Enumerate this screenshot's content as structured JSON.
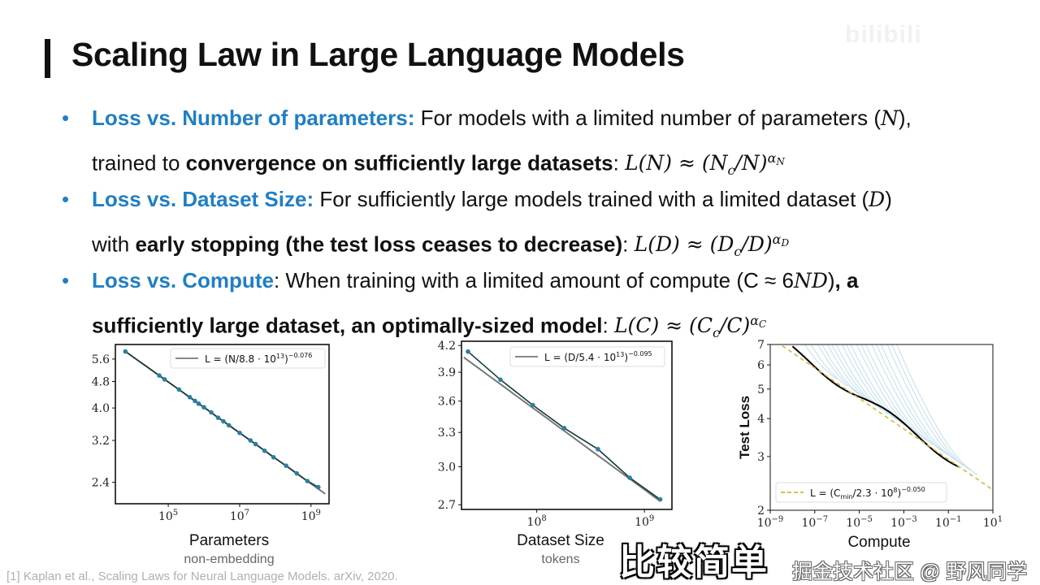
{
  "slide": {
    "title": "Scaling Law in Large Language Models",
    "watermark_logo": "bilibili",
    "bullets": [
      {
        "lead": "Loss vs. Number of parameters:",
        "text1": " For models with a limited number of parameters (",
        "var1": "N",
        "text2": "),",
        "line2_pre": "trained to ",
        "line2_bold": "convergence on sufficiently large datasets",
        "line2_post": ": ",
        "eq": {
          "pre": "L(",
          "v": "N",
          "mid": ") ≈ (",
          "base": "N",
          "sub": "c",
          "div": "/N)",
          "sup": "α",
          "supsub": "N"
        }
      },
      {
        "lead": "Loss vs. Dataset Size:",
        "text1": " For sufficiently large models trained with a limited dataset (",
        "var1": "D",
        "text2": ")",
        "line2_pre": "with ",
        "line2_bold": "early stopping (the test loss ceases to decrease)",
        "line2_post": ": ",
        "eq": {
          "pre": "L(",
          "v": "D",
          "mid": ") ≈ (",
          "base": "D",
          "sub": "c",
          "div": "/D)",
          "sup": "α",
          "supsub": "D"
        }
      },
      {
        "lead": "Loss vs. Compute",
        "text1": ": When training with a limited amount of compute (C ≈ 6",
        "var1": "ND",
        "text2": ")",
        "text3_bold": ", a",
        "line2_pre": "",
        "line2_bold": "sufficiently large dataset, an optimally-sized model",
        "line2_post": ": ",
        "eq": {
          "pre": "L(",
          "v": "C",
          "mid": ") ≈ (",
          "base": "C",
          "sub": "c",
          "div": "/C)",
          "sup": "α",
          "supsub": "C"
        }
      }
    ],
    "citation": "[1] Kaplan et al., Scaling Laws for Neural Language Models. arXiv, 2020.",
    "subtitle_overlay": "比较简单",
    "site_watermark": "掘金技术社区 @ 野风同学"
  },
  "colors": {
    "accent": "#1f7fc4",
    "point": "#2a7fa0",
    "fit_line": "#777777",
    "frontier": "#000000",
    "curves": "#8fc3de",
    "dashed_fit": "#d9b43a"
  },
  "chart_data": [
    {
      "type": "line",
      "xscale": "log",
      "yscale": "log",
      "xlabel": "Parameters",
      "xlabel_sub": "non-embedding",
      "ylabel": "",
      "xticks": [
        {
          "v": 100000,
          "b": "10",
          "e": "5"
        },
        {
          "v": 10000000,
          "b": "10",
          "e": "7"
        },
        {
          "v": 1000000000,
          "b": "10",
          "e": "9"
        }
      ],
      "yticks": [
        5.6,
        4.8,
        4.0,
        3.2,
        2.4
      ],
      "ytick_labels": [
        "5.6",
        "4.8",
        "4.0",
        "3.2",
        "2.4"
      ],
      "xlim": [
        3300,
        3200000000.0
      ],
      "ylim": [
        2.07,
        6.19
      ],
      "legend": {
        "position": "top-right",
        "label": "L = (N/8.8 · 10",
        "label_exp": "13",
        "label_tail": ")",
        "label_sup": "−0.076"
      },
      "fit": {
        "Nc": 88000000000000.0,
        "alpha": 0.076,
        "x_range": [
          6300,
          2500000000.0
        ]
      },
      "x": [
        6300,
        56000,
        79000,
        200000,
        400000,
        560000,
        710000,
        1000000,
        1600000,
        2500000,
        3500000,
        5000000,
        10000000,
        20000000,
        28000000,
        50000000,
        89000000,
        200000000,
        400000000,
        790000000,
        1600000000
      ],
      "y": [
        5.9,
        5.0,
        4.87,
        4.54,
        4.31,
        4.2,
        4.12,
        4.02,
        3.88,
        3.74,
        3.65,
        3.55,
        3.37,
        3.2,
        3.12,
        2.98,
        2.85,
        2.69,
        2.55,
        2.42,
        2.32
      ]
    },
    {
      "type": "line",
      "xscale": "log",
      "yscale": "log",
      "xlabel": "Dataset Size",
      "xlabel_sub": "tokens",
      "ylabel": "",
      "xticks": [
        {
          "v": 100000000,
          "b": "10",
          "e": "8"
        },
        {
          "v": 1000000000,
          "b": "10",
          "e": "9"
        }
      ],
      "yticks": [
        4.2,
        3.9,
        3.6,
        3.3,
        3.0,
        2.7
      ],
      "ytick_labels": [
        "4.2",
        "3.9",
        "3.6",
        "3.3",
        "3.0",
        "2.7"
      ],
      "xlim": [
        20000000.0,
        1800000000.0
      ],
      "ylim": [
        2.665,
        4.25
      ],
      "legend": {
        "position": "top-right",
        "label": "L = (D/5.4 · 10",
        "label_exp": "13",
        "label_tail": ")",
        "label_sup": "−0.095"
      },
      "fit": {
        "Dc": 54000000000000.0,
        "alpha": 0.095,
        "x_range": [
          21000000.0,
          1400000000.0
        ]
      },
      "x": [
        23000000,
        46000000,
        92000000,
        180000000,
        370000000,
        730000000,
        1400000000
      ],
      "y": [
        4.13,
        3.82,
        3.56,
        3.34,
        3.15,
        2.91,
        2.74
      ]
    },
    {
      "type": "line",
      "xscale": "log",
      "yscale": "log",
      "xlabel": "Compute",
      "ylabel": "Test Loss",
      "xticks": [
        {
          "v": 1e-09,
          "b": "10",
          "e": "−9"
        },
        {
          "v": 1e-07,
          "b": "10",
          "e": "−7"
        },
        {
          "v": 1e-05,
          "b": "10",
          "e": "−5"
        },
        {
          "v": 0.001,
          "b": "10",
          "e": "−3"
        },
        {
          "v": 0.1,
          "b": "10",
          "e": "−1"
        },
        {
          "v": 10,
          "b": "10",
          "e": "1"
        }
      ],
      "yticks": [
        7,
        6,
        5,
        4,
        3,
        2
      ],
      "ytick_labels": [
        "7",
        "6",
        "5",
        "4",
        "3",
        "2"
      ],
      "xlim": [
        1e-09,
        10
      ],
      "ylim": [
        2,
        7
      ],
      "legend": {
        "position": "bottom-left",
        "label": "L = (C",
        "label_sub": "min",
        "label_mid": "/2.3 · 10",
        "label_exp": "8",
        "label_tail": ")",
        "label_sup": "−0.050"
      },
      "fit": {
        "Cc": 230000000.0,
        "alpha": 0.05,
        "x_range": [
          1e-09,
          10
        ]
      },
      "frontier_x_range": [
        1e-08,
        0.3
      ],
      "training_curve_end_compute": [
        1e-06,
        3e-06,
        1e-05,
        2e-05,
        5e-05,
        0.0001,
        0.0002,
        0.0005,
        0.001,
        0.002,
        0.005,
        0.01,
        0.02,
        0.05,
        0.1,
        0.2,
        0.5,
        1,
        2
      ]
    }
  ]
}
